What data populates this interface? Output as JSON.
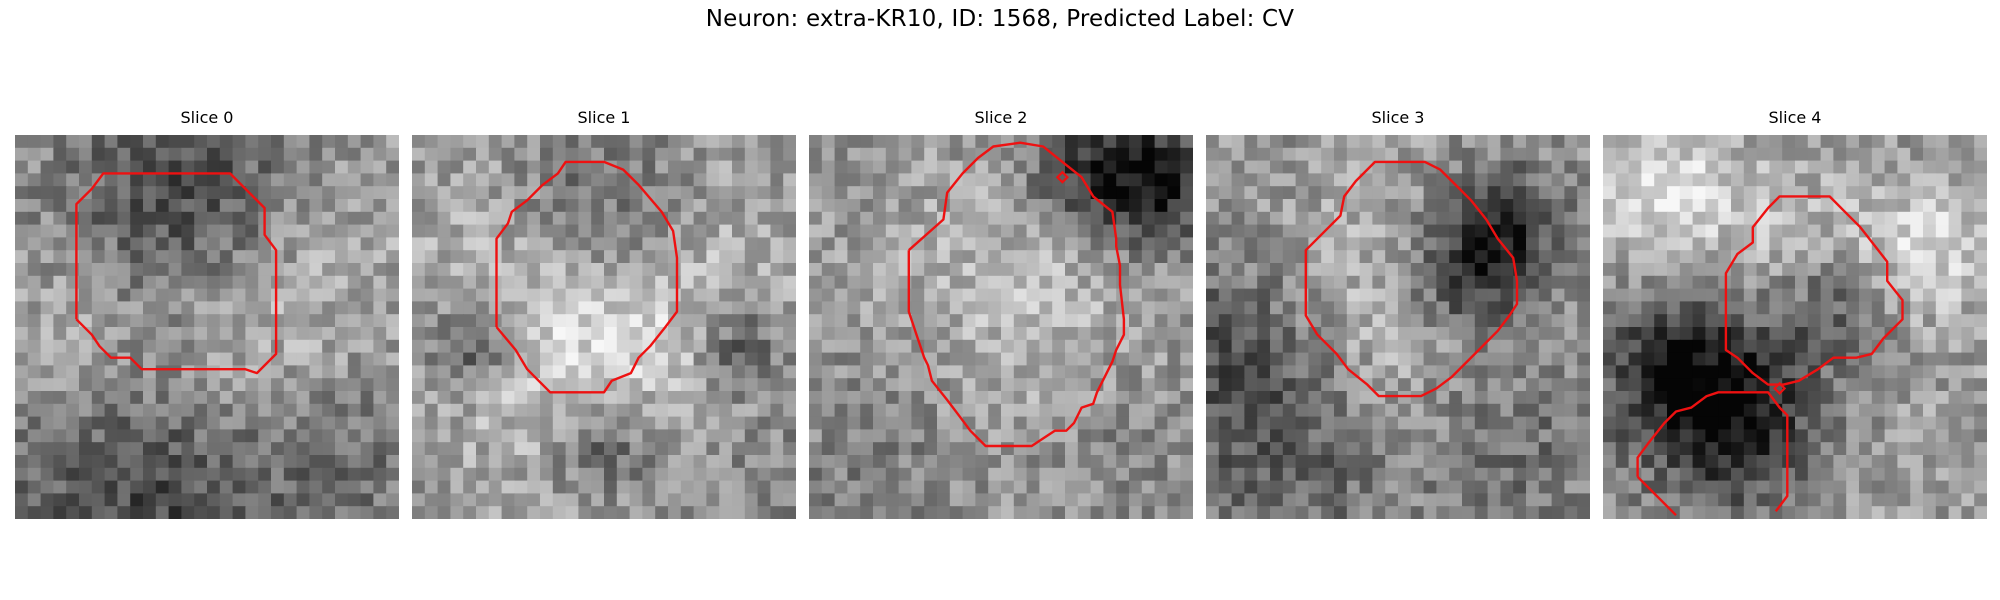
{
  "figure": {
    "title": "Neuron: extra-KR10, ID: 1568, Predicted Label: CV"
  },
  "colors": {
    "contour": "#ee1111",
    "background": "#ffffff"
  },
  "panels": [
    {
      "title": "Slice 0",
      "contours": [
        [
          [
            0.16,
            0.48
          ],
          [
            0.16,
            0.18
          ],
          [
            0.2,
            0.14
          ],
          [
            0.23,
            0.1
          ],
          [
            0.56,
            0.1
          ],
          [
            0.6,
            0.14
          ],
          [
            0.65,
            0.19
          ],
          [
            0.65,
            0.26
          ],
          [
            0.68,
            0.3
          ],
          [
            0.68,
            0.57
          ],
          [
            0.63,
            0.62
          ],
          [
            0.6,
            0.61
          ],
          [
            0.33,
            0.61
          ],
          [
            0.3,
            0.58
          ],
          [
            0.25,
            0.58
          ],
          [
            0.22,
            0.55
          ],
          [
            0.2,
            0.52
          ],
          [
            0.16,
            0.48
          ]
        ]
      ],
      "markers": []
    },
    {
      "title": "Slice 1",
      "contours": [
        [
          [
            0.22,
            0.5
          ],
          [
            0.22,
            0.27
          ],
          [
            0.25,
            0.23
          ],
          [
            0.26,
            0.2
          ],
          [
            0.3,
            0.17
          ],
          [
            0.34,
            0.13
          ],
          [
            0.38,
            0.1
          ],
          [
            0.4,
            0.07
          ],
          [
            0.5,
            0.07
          ],
          [
            0.55,
            0.09
          ],
          [
            0.59,
            0.13
          ],
          [
            0.65,
            0.2
          ],
          [
            0.68,
            0.25
          ],
          [
            0.69,
            0.32
          ],
          [
            0.69,
            0.46
          ],
          [
            0.66,
            0.5
          ],
          [
            0.62,
            0.55
          ],
          [
            0.59,
            0.58
          ],
          [
            0.57,
            0.62
          ],
          [
            0.52,
            0.64
          ],
          [
            0.5,
            0.67
          ],
          [
            0.4,
            0.67
          ],
          [
            0.36,
            0.67
          ],
          [
            0.33,
            0.64
          ],
          [
            0.3,
            0.61
          ],
          [
            0.27,
            0.56
          ],
          [
            0.22,
            0.5
          ]
        ]
      ],
      "markers": []
    },
    {
      "title": "Slice 2",
      "contours": [
        [
          [
            0.26,
            0.3
          ],
          [
            0.35,
            0.22
          ],
          [
            0.36,
            0.15
          ],
          [
            0.4,
            0.1
          ],
          [
            0.44,
            0.06
          ],
          [
            0.48,
            0.03
          ],
          [
            0.55,
            0.02
          ],
          [
            0.61,
            0.03
          ],
          [
            0.66,
            0.07
          ],
          [
            0.71,
            0.11
          ],
          [
            0.74,
            0.16
          ],
          [
            0.79,
            0.2
          ],
          [
            0.8,
            0.27
          ],
          [
            0.8,
            0.29
          ],
          [
            0.81,
            0.34
          ],
          [
            0.81,
            0.39
          ],
          [
            0.82,
            0.48
          ],
          [
            0.82,
            0.52
          ],
          [
            0.8,
            0.56
          ],
          [
            0.79,
            0.59
          ],
          [
            0.77,
            0.63
          ],
          [
            0.75,
            0.67
          ],
          [
            0.74,
            0.7
          ],
          [
            0.71,
            0.71
          ],
          [
            0.69,
            0.75
          ],
          [
            0.67,
            0.77
          ],
          [
            0.66,
            0.77
          ],
          [
            0.64,
            0.77
          ],
          [
            0.61,
            0.79
          ],
          [
            0.58,
            0.81
          ],
          [
            0.5,
            0.81
          ],
          [
            0.46,
            0.81
          ],
          [
            0.42,
            0.77
          ],
          [
            0.39,
            0.73
          ],
          [
            0.36,
            0.69
          ],
          [
            0.32,
            0.64
          ],
          [
            0.31,
            0.6
          ],
          [
            0.3,
            0.58
          ],
          [
            0.29,
            0.55
          ],
          [
            0.28,
            0.52
          ],
          [
            0.27,
            0.49
          ],
          [
            0.26,
            0.46
          ],
          [
            0.26,
            0.3
          ]
        ]
      ],
      "markers": [
        [
          0.66,
          0.11
        ]
      ]
    },
    {
      "title": "Slice 3",
      "contours": [
        [
          [
            0.26,
            0.31
          ],
          [
            0.26,
            0.3
          ],
          [
            0.3,
            0.26
          ],
          [
            0.35,
            0.21
          ],
          [
            0.36,
            0.16
          ],
          [
            0.39,
            0.12
          ],
          [
            0.44,
            0.07
          ],
          [
            0.5,
            0.07
          ],
          [
            0.57,
            0.07
          ],
          [
            0.61,
            0.09
          ],
          [
            0.65,
            0.13
          ],
          [
            0.69,
            0.17
          ],
          [
            0.73,
            0.22
          ],
          [
            0.76,
            0.27
          ],
          [
            0.8,
            0.32
          ],
          [
            0.81,
            0.38
          ],
          [
            0.81,
            0.44
          ],
          [
            0.79,
            0.47
          ],
          [
            0.76,
            0.51
          ],
          [
            0.73,
            0.54
          ],
          [
            0.68,
            0.59
          ],
          [
            0.64,
            0.63
          ],
          [
            0.6,
            0.66
          ],
          [
            0.56,
            0.68
          ],
          [
            0.5,
            0.68
          ],
          [
            0.45,
            0.68
          ],
          [
            0.42,
            0.65
          ],
          [
            0.37,
            0.61
          ],
          [
            0.34,
            0.57
          ],
          [
            0.29,
            0.52
          ],
          [
            0.26,
            0.47
          ],
          [
            0.26,
            0.31
          ]
        ]
      ],
      "markers": []
    },
    {
      "title": "Slice 4",
      "contours": [
        [
          [
            0.32,
            0.38
          ],
          [
            0.32,
            0.36
          ],
          [
            0.35,
            0.31
          ],
          [
            0.39,
            0.28
          ],
          [
            0.39,
            0.24
          ],
          [
            0.43,
            0.19
          ],
          [
            0.46,
            0.16
          ],
          [
            0.49,
            0.16
          ],
          [
            0.59,
            0.16
          ],
          [
            0.63,
            0.2
          ],
          [
            0.67,
            0.24
          ],
          [
            0.74,
            0.33
          ],
          [
            0.74,
            0.38
          ],
          [
            0.78,
            0.43
          ],
          [
            0.78,
            0.48
          ],
          [
            0.73,
            0.53
          ],
          [
            0.7,
            0.57
          ],
          [
            0.66,
            0.58
          ],
          [
            0.6,
            0.58
          ],
          [
            0.56,
            0.61
          ],
          [
            0.51,
            0.64
          ],
          [
            0.47,
            0.65
          ],
          [
            0.43,
            0.65
          ],
          [
            0.39,
            0.62
          ],
          [
            0.35,
            0.58
          ],
          [
            0.32,
            0.56
          ],
          [
            0.32,
            0.38
          ]
        ],
        [
          [
            0.09,
            0.89
          ],
          [
            0.09,
            0.84
          ],
          [
            0.12,
            0.8
          ],
          [
            0.16,
            0.75
          ],
          [
            0.19,
            0.72
          ],
          [
            0.23,
            0.71
          ],
          [
            0.27,
            0.68
          ],
          [
            0.3,
            0.67
          ],
          [
            0.43,
            0.67
          ],
          [
            0.46,
            0.71
          ],
          [
            0.48,
            0.73
          ],
          [
            0.48,
            0.94
          ],
          [
            0.45,
            0.98
          ]
        ],
        [
          [
            0.09,
            0.89
          ],
          [
            0.19,
            0.99
          ]
        ]
      ],
      "markers": [
        [
          0.46,
          0.66
        ]
      ]
    }
  ]
}
